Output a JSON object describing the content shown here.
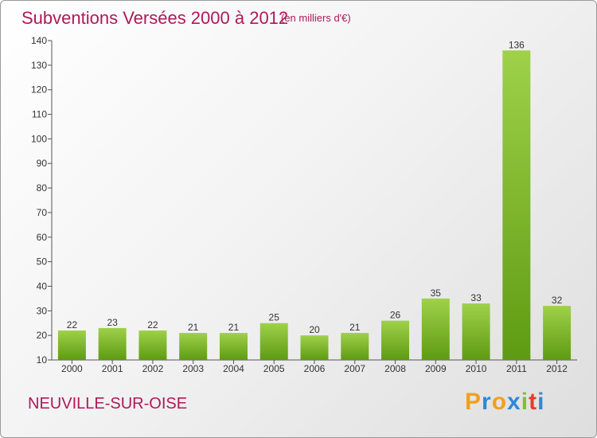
{
  "header": {
    "title": "Subventions Versées 2000 à 2012",
    "subtitle": "(en milliers d'€)"
  },
  "footer": {
    "commune": "NEUVILLE-SUR-OISE",
    "logo": "Proxiti"
  },
  "colors": {
    "title": "#b0185a",
    "bar_light": "#9fd14a",
    "bar_dark": "#5e9b12",
    "logo_letters": [
      "#f0a020",
      "#2e88d8",
      "#f0a020",
      "#2e88d8",
      "#7cc230",
      "#e83a2a",
      "#2e88d8"
    ]
  },
  "chart_data": {
    "type": "bar",
    "title": "Subventions Versées 2000 à 2012",
    "subtitle": "(en milliers d'€)",
    "categories": [
      "2000",
      "2001",
      "2002",
      "2003",
      "2004",
      "2005",
      "2006",
      "2007",
      "2008",
      "2009",
      "2010",
      "2011",
      "2012"
    ],
    "values": [
      22,
      23,
      22,
      21,
      21,
      25,
      20,
      21,
      26,
      35,
      33,
      136,
      32
    ],
    "ylim": [
      10,
      140
    ],
    "yticks": [
      10,
      20,
      30,
      40,
      50,
      60,
      70,
      80,
      90,
      100,
      110,
      120,
      130,
      140
    ],
    "grid": false,
    "data_labels": true
  }
}
